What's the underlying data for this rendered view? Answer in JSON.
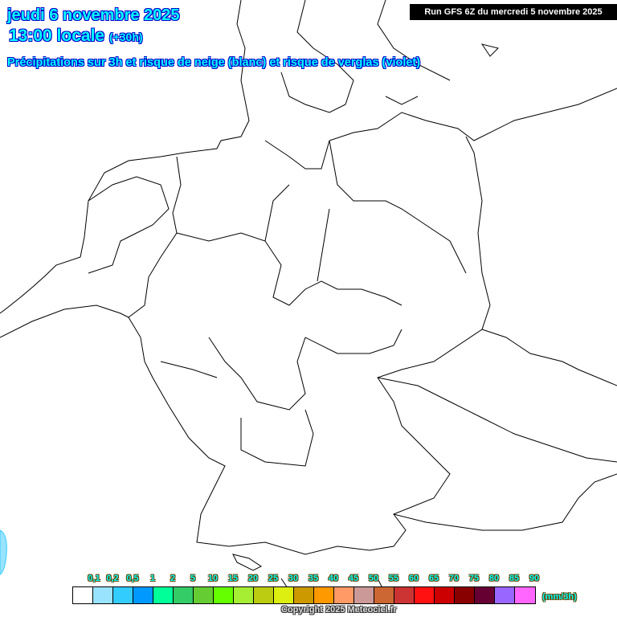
{
  "header": {
    "date": "jeudi 6 novembre 2025",
    "time": "13:00 locale",
    "offset": "(+30h)",
    "subtitle": "Précipitations sur 3h et risque de neige (blanc) et risque de verglas (violet)",
    "run": "Run GFS 6Z du mercredi 5 novembre 2025"
  },
  "legend": {
    "labels": [
      "0,1",
      "0,2",
      "0,5",
      "1",
      "2",
      "5",
      "10",
      "15",
      "20",
      "25",
      "30",
      "35",
      "40",
      "45",
      "50",
      "55",
      "60",
      "65",
      "70",
      "75",
      "80",
      "85",
      "90"
    ],
    "colors": [
      "#ffffff",
      "#99e3ff",
      "#33ccff",
      "#0099ff",
      "#00ff99",
      "#33cc66",
      "#66cc33",
      "#66ff00",
      "#a6ee33",
      "#bbcc11",
      "#ddee11",
      "#cc9900",
      "#ff9900",
      "#ff9966",
      "#cc9999",
      "#cc6633",
      "#cc3333",
      "#ff1111",
      "#cc0000",
      "#880000",
      "#660033",
      "#9966ff",
      "#ff66ff"
    ],
    "unit": "(mm/3h)"
  },
  "precip_color": "#99e3ff",
  "copyright": "Copyright 2025 Meteociel.fr"
}
